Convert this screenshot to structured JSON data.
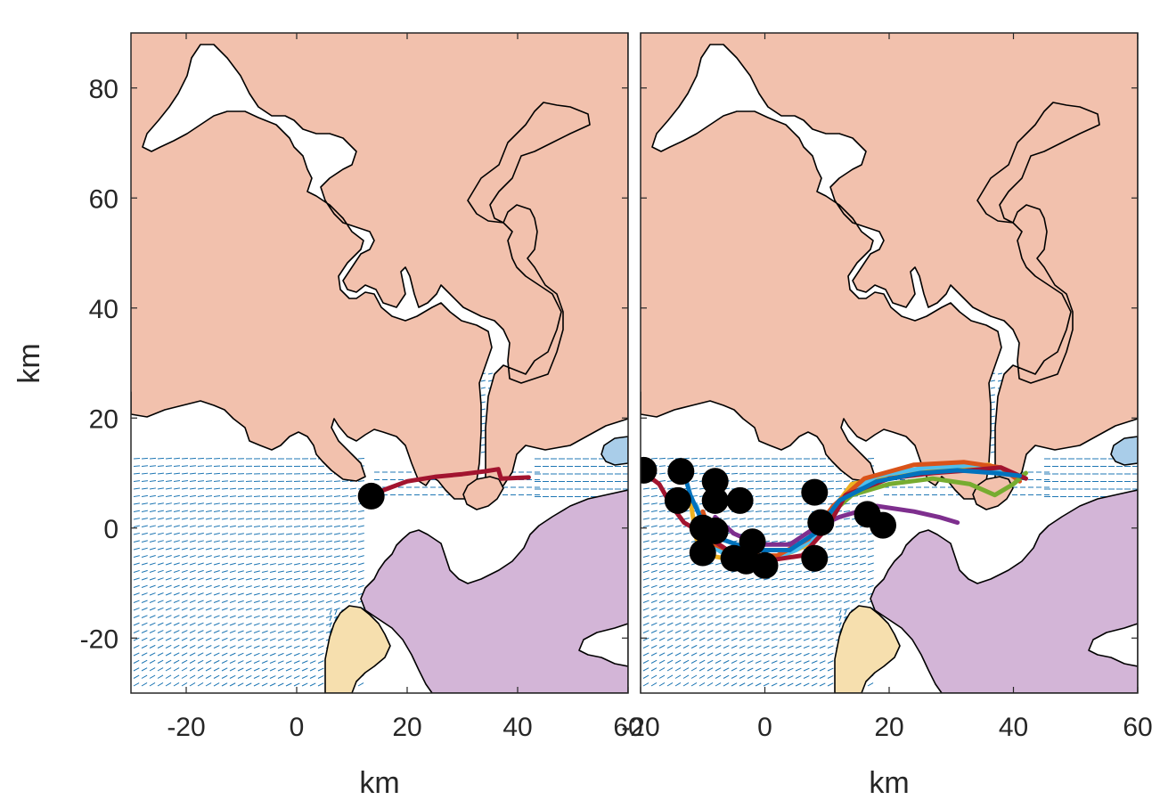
{
  "colors": {
    "land_north": "#f2c1ad",
    "land_south": "#d3b5d7",
    "land_southwest": "#f6dfae",
    "small_island": "#a9cde9",
    "current_vectors": "#1f77b4",
    "drop_points": "#000000"
  },
  "chart_data": [
    {
      "type": "map",
      "panel": "left",
      "xlabel": "km",
      "ylabel": "km",
      "xlim": [
        -30,
        60
      ],
      "ylim": [
        -30,
        90
      ],
      "xticks": [
        -20,
        0,
        20,
        40,
        60
      ],
      "xtick_labels": [
        "-20",
        "0",
        "20",
        "40",
        "60"
      ],
      "yticks": [
        -20,
        0,
        20,
        40,
        60,
        80
      ],
      "ytick_labels": [
        "-20",
        "0",
        "20",
        "40",
        "60",
        "80"
      ],
      "trajectories": [
        {
          "color": "#a2142f",
          "points": [
            [
              13.5,
              5.8
            ],
            [
              16,
              7
            ],
            [
              20,
              8.5
            ],
            [
              25,
              9.3
            ],
            [
              30,
              9.8
            ],
            [
              34,
              10.3
            ],
            [
              36.5,
              10.7
            ],
            [
              37,
              9
            ],
            [
              42,
              9.2
            ]
          ]
        }
      ],
      "start_points": [
        [
          13.5,
          5.8
        ]
      ]
    },
    {
      "type": "map",
      "panel": "right",
      "xlabel": "km",
      "xlim": [
        -20,
        60
      ],
      "ylim": [
        -30,
        90
      ],
      "xticks": [
        -20,
        0,
        20,
        40,
        60
      ],
      "xtick_labels": [
        "-20",
        "0",
        "20",
        "40",
        "60"
      ],
      "yticks": [
        -20,
        0,
        20,
        40,
        60,
        80
      ],
      "trajectories": [
        {
          "color": "#edb120",
          "points": [
            [
              -12,
              5
            ],
            [
              -11,
              -2
            ],
            [
              -9,
              -5
            ],
            [
              -4,
              -6
            ],
            [
              3,
              -5
            ],
            [
              7,
              -3
            ],
            [
              10,
              2
            ],
            [
              14,
              8
            ],
            [
              22,
              10
            ],
            [
              30,
              11
            ],
            [
              36,
              11.5
            ],
            [
              41,
              9
            ]
          ]
        },
        {
          "color": "#4dbeee",
          "points": [
            [
              -11,
              4
            ],
            [
              -9,
              -3
            ],
            [
              -6,
              -5
            ],
            [
              0,
              -6
            ],
            [
              5,
              -4
            ],
            [
              9,
              -1
            ],
            [
              12,
              5
            ],
            [
              18,
              9.5
            ],
            [
              26,
              11
            ],
            [
              34,
              11.5
            ],
            [
              40,
              9.5
            ]
          ]
        },
        {
          "color": "#d95319",
          "points": [
            [
              -10,
              3
            ],
            [
              -8,
              -3
            ],
            [
              -4,
              -5
            ],
            [
              2,
              -5
            ],
            [
              7,
              -2
            ],
            [
              11,
              4
            ],
            [
              16,
              9
            ],
            [
              24,
              11.5
            ],
            [
              32,
              12
            ],
            [
              38,
              11
            ],
            [
              41,
              8.5
            ]
          ]
        },
        {
          "color": "#7e2f8e",
          "points": [
            [
              -8,
              2
            ],
            [
              -5,
              -1
            ],
            [
              -1,
              -3
            ],
            [
              4,
              -3
            ],
            [
              8,
              0
            ],
            [
              12,
              2
            ],
            [
              18,
              4
            ],
            [
              24,
              3
            ],
            [
              28,
              2
            ],
            [
              31,
              1
            ]
          ]
        },
        {
          "color": "#77ac30",
          "points": [
            [
              8,
              0
            ],
            [
              11,
              3
            ],
            [
              14,
              6
            ],
            [
              20,
              8
            ],
            [
              27,
              9
            ],
            [
              33,
              8
            ],
            [
              37,
              6
            ],
            [
              40,
              8
            ],
            [
              42,
              10
            ]
          ]
        },
        {
          "color": "#a2142f",
          "points": [
            [
              -20,
              10.5
            ],
            [
              -17,
              8
            ],
            [
              -15,
              4
            ],
            [
              -13,
              1
            ],
            [
              -10,
              -1
            ],
            [
              -6,
              -4
            ],
            [
              0,
              -6
            ],
            [
              6,
              -5
            ],
            [
              10,
              0
            ],
            [
              13,
              6
            ],
            [
              20,
              9
            ],
            [
              27,
              10
            ],
            [
              33,
              10.5
            ],
            [
              38,
              11
            ],
            [
              42,
              9
            ]
          ]
        },
        {
          "color": "#0072bd",
          "points": [
            [
              -13,
              10
            ],
            [
              -12,
              6
            ],
            [
              -10,
              1
            ],
            [
              -7,
              -2
            ],
            [
              -2,
              -4
            ],
            [
              4,
              -4
            ],
            [
              8,
              -1
            ],
            [
              12,
              5
            ],
            [
              18,
              8.5
            ],
            [
              25,
              10
            ],
            [
              31,
              10.5
            ],
            [
              37,
              10
            ],
            [
              41,
              9.5
            ]
          ]
        }
      ],
      "start_points": [
        [
          -19.5,
          10.5
        ],
        [
          -13.5,
          10.3
        ],
        [
          -14,
          5
        ],
        [
          -8,
          8.5
        ],
        [
          -8,
          5
        ],
        [
          -4,
          5
        ],
        [
          -10,
          0
        ],
        [
          -8,
          -0.5
        ],
        [
          -10,
          -4.5
        ],
        [
          -5,
          -5.5
        ],
        [
          -2,
          -2.5
        ],
        [
          -3,
          -6
        ],
        [
          0,
          -6.8
        ],
        [
          8,
          -5.5
        ],
        [
          8,
          6.5
        ],
        [
          9,
          1
        ],
        [
          16.5,
          2.5
        ],
        [
          19,
          0.5
        ]
      ]
    }
  ]
}
